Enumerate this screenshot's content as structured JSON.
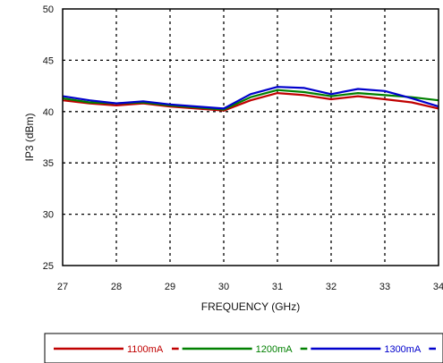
{
  "chart_data": {
    "type": "line",
    "xlabel": "FREQUENCY (GHz)",
    "ylabel": "IP3 (dBm)",
    "xlim": [
      27,
      34
    ],
    "ylim": [
      25,
      50
    ],
    "x_ticks": [
      27,
      28,
      29,
      30,
      31,
      32,
      33,
      34
    ],
    "y_ticks": [
      25,
      30,
      35,
      40,
      45,
      50
    ],
    "grid": true,
    "legend_position": "bottom",
    "series": [
      {
        "name": "1100mA",
        "color": "#c00000",
        "x": [
          27,
          27.5,
          28,
          28.5,
          29,
          29.5,
          30,
          30.5,
          31,
          31.5,
          32,
          32.5,
          33,
          33.5,
          34
        ],
        "y": [
          41.1,
          40.8,
          40.6,
          40.8,
          40.5,
          40.3,
          40.1,
          41.1,
          41.8,
          41.6,
          41.2,
          41.5,
          41.2,
          40.9,
          40.3
        ]
      },
      {
        "name": "1200mA",
        "color": "#008000",
        "x": [
          27,
          27.5,
          28,
          28.5,
          29,
          29.5,
          30,
          30.5,
          31,
          31.5,
          32,
          32.5,
          33,
          33.5,
          34
        ],
        "y": [
          41.3,
          40.9,
          40.8,
          40.9,
          40.6,
          40.4,
          40.2,
          41.4,
          42.1,
          41.9,
          41.5,
          41.8,
          41.6,
          41.4,
          41.1
        ]
      },
      {
        "name": "1300mA",
        "color": "#0000cc",
        "x": [
          27,
          27.5,
          28,
          28.5,
          29,
          29.5,
          30,
          30.5,
          31,
          31.5,
          32,
          32.5,
          33,
          33.5,
          34
        ],
        "y": [
          41.5,
          41.1,
          40.8,
          41.0,
          40.7,
          40.5,
          40.3,
          41.7,
          42.4,
          42.3,
          41.7,
          42.2,
          42.0,
          41.3,
          40.5
        ]
      }
    ]
  }
}
